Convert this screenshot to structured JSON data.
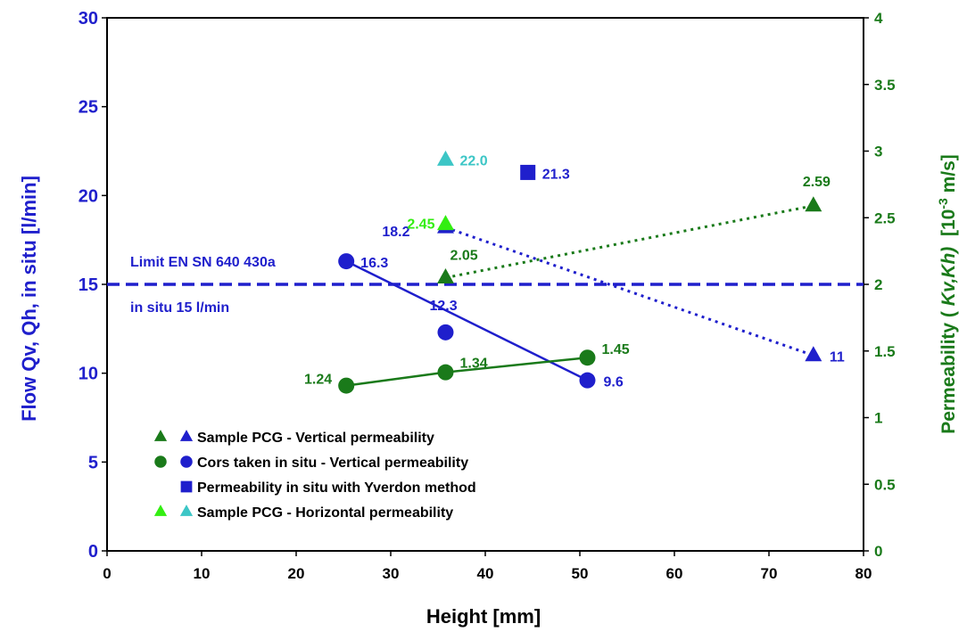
{
  "chart_data": {
    "type": "scatter",
    "xlabel": "Height [mm]",
    "ylabel_left": "Flow Qv, Qh, in situ [l/min]",
    "ylabel_right": {
      "main": "Permeability (",
      "italic": "Kv,Kh)",
      "bracket_open": "[10",
      "exponent": "-3",
      "bracket_close": " m/s]"
    },
    "xlim": [
      0,
      80
    ],
    "ylim_left": [
      0,
      30
    ],
    "ylim_right": [
      0,
      4
    ],
    "x_ticks": [
      "0",
      "10",
      "20",
      "30",
      "40",
      "50",
      "60",
      "70",
      "80"
    ],
    "y_left_ticks": [
      "0",
      "5",
      "10",
      "15",
      "20",
      "25",
      "30"
    ],
    "y_right_ticks": [
      "0",
      "0.5",
      "1",
      "1.5",
      "2",
      "2.5",
      "3",
      "3.5",
      "4"
    ],
    "grid": false,
    "limit_line": {
      "y": 15,
      "label_top": "Limit EN SN 640 430a",
      "label_bottom": "in situ 15 l/min"
    },
    "series": [
      {
        "name": "blue_flow_vertical_sample",
        "axis": "left",
        "marker": "triangle",
        "color": "#1f1fcc",
        "line": "dotted",
        "points": [
          {
            "x": 35.8,
            "y": 18.2,
            "label": "18.2"
          },
          {
            "x": 74.7,
            "y": 11.0,
            "label": "11"
          }
        ]
      },
      {
        "name": "green_perm_vertical_sample",
        "axis": "right",
        "marker": "triangle",
        "color": "#1a7a1a",
        "line": "dotted",
        "points": [
          {
            "x": 35.8,
            "y": 2.05,
            "label": "2.05"
          },
          {
            "x": 74.7,
            "y": 2.59,
            "label": "2.59"
          }
        ]
      },
      {
        "name": "blue_flow_cores",
        "axis": "left",
        "marker": "circle",
        "color": "#1f1fcc",
        "line": "solid",
        "points": [
          {
            "x": 25.3,
            "y": 16.3,
            "label": "16.3"
          },
          {
            "x": 35.8,
            "y": 12.3,
            "label": "12.3"
          },
          {
            "x": 50.8,
            "y": 9.6,
            "label": "9.6"
          }
        ],
        "line_points": [
          0,
          2
        ]
      },
      {
        "name": "green_perm_cores",
        "axis": "right",
        "marker": "circle",
        "color": "#1a7a1a",
        "line": "solid",
        "points": [
          {
            "x": 25.3,
            "y": 1.24,
            "label": "1.24"
          },
          {
            "x": 35.8,
            "y": 1.34,
            "label": "1.34"
          },
          {
            "x": 50.8,
            "y": 1.45,
            "label": "1.45"
          }
        ],
        "line_points": [
          0,
          1,
          2
        ]
      },
      {
        "name": "blue_yverdon",
        "axis": "left",
        "marker": "square",
        "color": "#1f1fcc",
        "line": "none",
        "points": [
          {
            "x": 44.5,
            "y": 21.3,
            "label": "21.3"
          }
        ]
      },
      {
        "name": "cyan_flow_horizontal",
        "axis": "left",
        "marker": "triangle",
        "color": "#3cc6c6",
        "line": "none",
        "points": [
          {
            "x": 35.8,
            "y": 22.0,
            "label": "22.0"
          }
        ]
      },
      {
        "name": "lime_perm_horizontal",
        "axis": "right",
        "marker": "triangle",
        "color": "#33ee11",
        "line": "none",
        "points": [
          {
            "x": 35.8,
            "y": 2.45,
            "label": "2.45"
          }
        ]
      }
    ],
    "legend": {
      "placement": "bottom-left",
      "entries": [
        {
          "text": "Sample PCG - Vertical permeability",
          "markers": [
            "triangle:#1a7a1a",
            "triangle:#1f1fcc"
          ]
        },
        {
          "text": "Cors taken in situ - Vertical permeability",
          "markers": [
            "circle:#1a7a1a",
            "circle:#1f1fcc"
          ]
        },
        {
          "text": "Permeability in situ with Yverdon method",
          "markers": [
            "square:#1f1fcc"
          ]
        },
        {
          "text": "Sample PCG - Horizontal permeability",
          "markers": [
            "triangle:#33ee11",
            "triangle:#3cc6c6"
          ]
        }
      ]
    }
  }
}
